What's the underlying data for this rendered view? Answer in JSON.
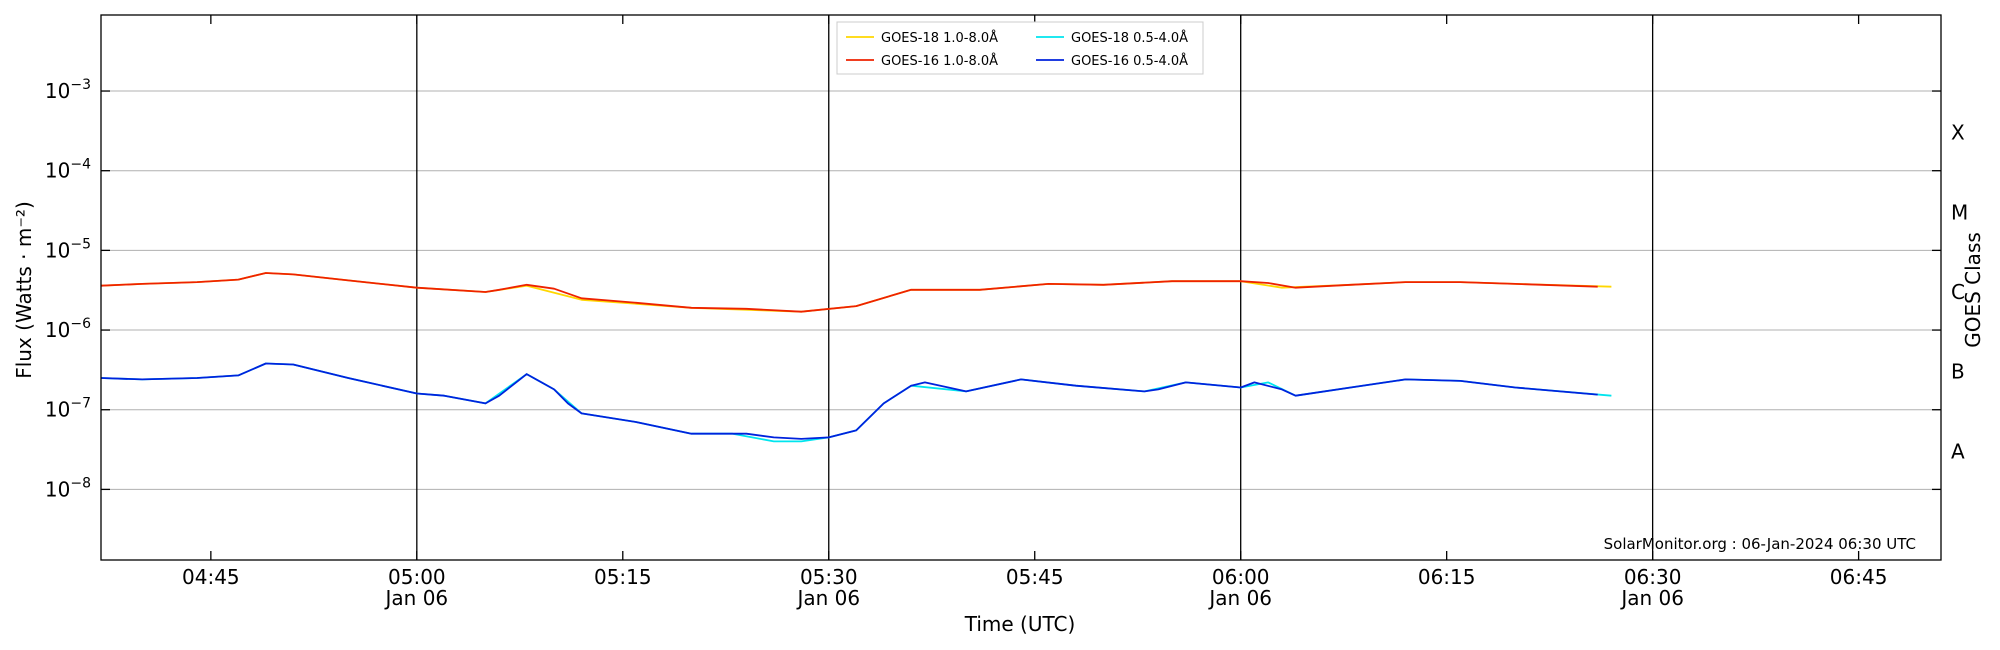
{
  "chart_data": {
    "type": "line",
    "xlabel": "Time (UTC)",
    "ylabel": "Flux (Watts · m⁻²)",
    "ylabel_right": "GOES Class",
    "y_scale": "log",
    "ylim": [
      "1.3e-9",
      "9e-3"
    ],
    "xlim": [
      "04:37",
      "06:51"
    ],
    "grid": "horizontal",
    "legend_position": "top-center",
    "y_ticks": [
      {
        "value": "1e-3",
        "mantissa": "10",
        "exponent": "−3"
      },
      {
        "value": "1e-4",
        "mantissa": "10",
        "exponent": "−4"
      },
      {
        "value": "1e-5",
        "mantissa": "10",
        "exponent": "−5"
      },
      {
        "value": "1e-6",
        "mantissa": "10",
        "exponent": "−6"
      },
      {
        "value": "1e-7",
        "mantissa": "10",
        "exponent": "−7"
      },
      {
        "value": "1e-8",
        "mantissa": "10",
        "exponent": "−8"
      }
    ],
    "x_ticks": [
      {
        "time": "04:45",
        "label": "04:45",
        "sublabel": ""
      },
      {
        "time": "05:00",
        "label": "05:00",
        "sublabel": "Jan 06"
      },
      {
        "time": "05:15",
        "label": "05:15",
        "sublabel": ""
      },
      {
        "time": "05:30",
        "label": "05:30",
        "sublabel": "Jan 06"
      },
      {
        "time": "05:45",
        "label": "05:45",
        "sublabel": ""
      },
      {
        "time": "06:00",
        "label": "06:00",
        "sublabel": "Jan 06"
      },
      {
        "time": "06:15",
        "label": "06:15",
        "sublabel": ""
      },
      {
        "time": "06:30",
        "label": "06:30",
        "sublabel": "Jan 06"
      },
      {
        "time": "06:45",
        "label": "06:45",
        "sublabel": ""
      }
    ],
    "vlines": [
      "05:00",
      "05:30",
      "06:00",
      "06:30"
    ],
    "goes_classes": [
      {
        "label": "X",
        "level": "3e-4"
      },
      {
        "label": "M",
        "level": "3e-5"
      },
      {
        "label": "C",
        "level": "3e-6"
      },
      {
        "label": "B",
        "level": "3e-7"
      },
      {
        "label": "A",
        "level": "3e-8"
      }
    ],
    "credit": "SolarMonitor.org : 06-Jan-2024 06:30 UTC",
    "series": [
      {
        "name": "GOES-18 1.0-8.0Å",
        "color": "#ffd700",
        "x": [
          "04:37",
          "04:40",
          "04:44",
          "04:47",
          "04:49",
          "04:51",
          "04:55",
          "05:00",
          "05:05",
          "05:08",
          "05:12",
          "05:20",
          "05:28",
          "05:32",
          "05:36",
          "05:41",
          "05:46",
          "05:50",
          "05:55",
          "06:00",
          "06:03",
          "06:08",
          "06:12",
          "06:16",
          "06:20",
          "06:27"
        ],
        "y": [
          "3.6e-6",
          "3.8e-6",
          "4.0e-6",
          "4.3e-6",
          "5.2e-6",
          "5.0e-6",
          "4.2e-6",
          "3.4e-6",
          "3.0e-6",
          "3.6e-6",
          "2.4e-6",
          "1.9e-6",
          "1.7e-6",
          "2.0e-6",
          "3.2e-6",
          "3.2e-6",
          "3.8e-6",
          "3.7e-6",
          "4.1e-6",
          "4.1e-6",
          "3.4e-6",
          "3.7e-6",
          "4.0e-6",
          "4.0e-6",
          "3.8e-6",
          "3.5e-6"
        ]
      },
      {
        "name": "GOES-18 0.5-4.0Å",
        "color": "#00e5ee",
        "x": [
          "04:37",
          "04:40",
          "04:44",
          "04:47",
          "04:49",
          "04:51",
          "04:55",
          "05:00",
          "05:02",
          "05:05",
          "05:08",
          "05:10",
          "05:12",
          "05:16",
          "05:20",
          "05:23",
          "05:26",
          "05:28",
          "05:30",
          "05:32",
          "05:34",
          "05:36",
          "05:40",
          "05:44",
          "05:48",
          "05:53",
          "05:56",
          "06:00",
          "06:02",
          "06:04",
          "06:08",
          "06:12",
          "06:16",
          "06:20",
          "06:27"
        ],
        "y": [
          "2.5e-7",
          "2.4e-7",
          "2.5e-7",
          "2.7e-7",
          "3.8e-7",
          "3.7e-7",
          "2.5e-7",
          "1.6e-7",
          "1.5e-7",
          "1.2e-7",
          "2.8e-7",
          "1.8e-7",
          "9e-8",
          "7e-8",
          "5e-8",
          "5e-8",
          "4e-8",
          "4e-8",
          "4.5e-8",
          "5.5e-8",
          "1.2e-7",
          "2.0e-7",
          "1.7e-7",
          "2.4e-7",
          "2.0e-7",
          "1.7e-7",
          "2.2e-7",
          "1.9e-7",
          "2.2e-7",
          "1.5e-7",
          "1.9e-7",
          "2.4e-7",
          "2.3e-7",
          "1.9e-7",
          "1.5e-7"
        ]
      },
      {
        "name": "GOES-16 1.0-8.0Å",
        "color": "#ee2200",
        "x": [
          "04:37",
          "04:40",
          "04:44",
          "04:47",
          "04:49",
          "04:51",
          "04:55",
          "05:00",
          "05:05",
          "05:06",
          "05:08",
          "05:10",
          "05:12",
          "05:16",
          "05:20",
          "05:24",
          "05:28",
          "05:32",
          "05:36",
          "05:41",
          "05:46",
          "05:50",
          "05:55",
          "06:00",
          "06:02",
          "06:04",
          "06:08",
          "06:12",
          "06:16",
          "06:20",
          "06:26"
        ],
        "y": [
          "3.6e-6",
          "3.8e-6",
          "4.0e-6",
          "4.3e-6",
          "5.2e-6",
          "5.0e-6",
          "4.2e-6",
          "3.4e-6",
          "3.0e-6",
          "3.2e-6",
          "3.7e-6",
          "3.3e-6",
          "2.5e-6",
          "2.2e-6",
          "1.9e-6",
          "1.85e-6",
          "1.7e-6",
          "2.0e-6",
          "3.2e-6",
          "3.2e-6",
          "3.8e-6",
          "3.7e-6",
          "4.1e-6",
          "4.1e-6",
          "3.9e-6",
          "3.4e-6",
          "3.7e-6",
          "4.0e-6",
          "4.0e-6",
          "3.8e-6",
          "3.5e-6"
        ]
      },
      {
        "name": "GOES-16 0.5-4.0Å",
        "color": "#0022dd",
        "x": [
          "04:37",
          "04:40",
          "04:44",
          "04:47",
          "04:49",
          "04:51",
          "04:55",
          "05:00",
          "05:02",
          "05:05",
          "05:06",
          "05:08",
          "05:10",
          "05:11",
          "05:12",
          "05:16",
          "05:20",
          "05:22",
          "05:24",
          "05:26",
          "05:28",
          "05:30",
          "05:32",
          "05:34",
          "05:36",
          "05:37",
          "05:40",
          "05:44",
          "05:48",
          "05:53",
          "05:54",
          "05:56",
          "06:00",
          "06:01",
          "06:03",
          "06:04",
          "06:08",
          "06:12",
          "06:16",
          "06:20",
          "06:26"
        ],
        "y": [
          "2.5e-7",
          "2.4e-7",
          "2.5e-7",
          "2.7e-7",
          "3.8e-7",
          "3.7e-7",
          "2.5e-7",
          "1.6e-7",
          "1.5e-7",
          "1.2e-7",
          "1.5e-7",
          "2.8e-7",
          "1.8e-7",
          "1.2e-7",
          "9e-8",
          "7e-8",
          "5e-8",
          "5e-8",
          "5e-8",
          "4.5e-8",
          "4.3e-8",
          "4.5e-8",
          "5.5e-8",
          "1.2e-7",
          "2.0e-7",
          "2.2e-7",
          "1.7e-7",
          "2.4e-7",
          "2.0e-7",
          "1.7e-7",
          "1.8e-7",
          "2.2e-7",
          "1.9e-7",
          "2.2e-7",
          "1.8e-7",
          "1.5e-7",
          "1.9e-7",
          "2.4e-7",
          "2.3e-7",
          "1.9e-7",
          "1.55e-7"
        ]
      }
    ]
  }
}
